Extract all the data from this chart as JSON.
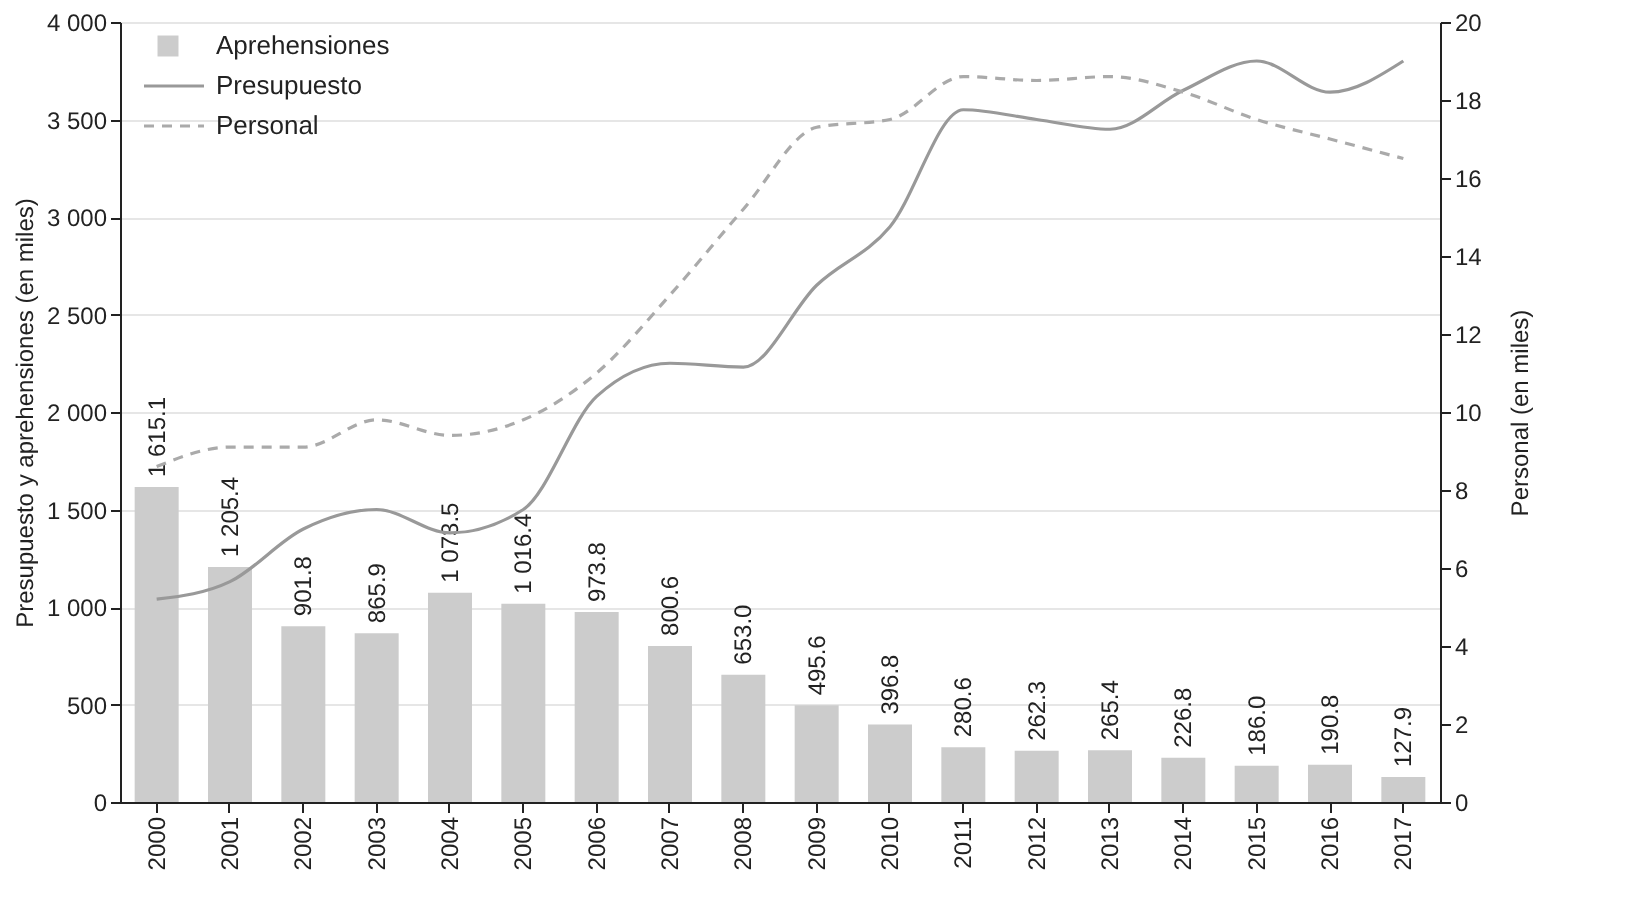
{
  "chart_data": {
    "type": "bar",
    "categories": [
      "2000",
      "2001",
      "2002",
      "2003",
      "2004",
      "2005",
      "2006",
      "2007",
      "2008",
      "2009",
      "2010",
      "2011",
      "2012",
      "2013",
      "2014",
      "2015",
      "2016",
      "2017"
    ],
    "ylabel": "Presupuesto y aprehensiones (en miles)",
    "y2label": "Personal (en miles)",
    "ylim": [
      0,
      4000
    ],
    "yticks": [
      0,
      500,
      {
        "value": 1000,
        "label": "1 000"
      },
      {
        "value": 1500,
        "label": "1 500"
      },
      {
        "value": 2000,
        "label": "2 000"
      },
      {
        "value": 2500,
        "label": "2 500"
      },
      {
        "value": 3000,
        "label": "3 000"
      },
      {
        "value": 3500,
        "label": "3 500"
      },
      {
        "value": 4000,
        "label": "4 000"
      }
    ],
    "y2lim": [
      0,
      20
    ],
    "y2ticks": [
      0,
      2,
      4,
      6,
      8,
      10,
      12,
      14,
      16,
      18,
      20
    ],
    "grid": "y",
    "legend": "top left",
    "series": [
      {
        "name": "Aprehensiones",
        "color": "#cccccc",
        "values": [
          1615.1,
          1205.4,
          901.8,
          865.9,
          1073.5,
          1016.4,
          973.8,
          800.6,
          653.0,
          495.6,
          396.8,
          280.6,
          262.3,
          265.4,
          226.8,
          186.0,
          190.8,
          127.9
        ],
        "value_labels": [
          "1 615.1",
          "1 205.4",
          "901.8",
          "865.9",
          "1 073.5",
          "1 016.4",
          "973.8",
          "800.6",
          "653.0",
          "495.6",
          "396.8",
          "280.6",
          "262.3",
          "265.4",
          "226.8",
          "186.0",
          "190.8",
          "127.9"
        ]
      },
      {
        "name": "Presupuesto",
        "type": "line",
        "line_style": "solid",
        "color": "#999999",
        "values": [
          1040,
          1130,
          1400,
          1500,
          1380,
          1500,
          2080,
          2250,
          2230,
          2650,
          2950,
          3550,
          3500,
          3450,
          3650,
          3800,
          3640,
          3800
        ]
      },
      {
        "name": "Personal",
        "type": "line",
        "line_style": "dashed",
        "axis": "y2",
        "color": "#aaaaaa",
        "values": [
          8.6,
          9.1,
          9.1,
          9.8,
          9.4,
          9.8,
          11.0,
          13.0,
          15.2,
          17.3,
          17.5,
          18.6,
          18.5,
          18.6,
          18.2,
          17.5,
          17.0,
          16.5
        ]
      }
    ]
  }
}
